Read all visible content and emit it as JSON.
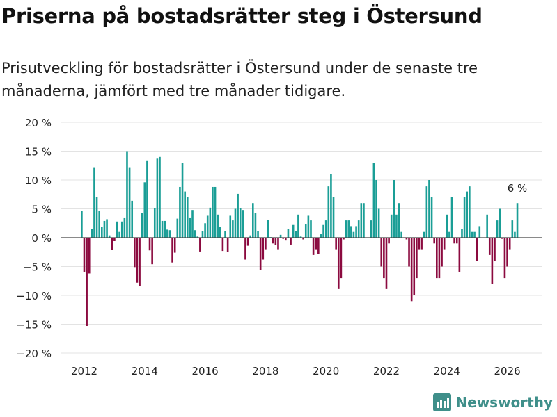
{
  "title": "Priserna på bostadsrätter steg i Östersund",
  "subtitle": "Prisutveckling för bostadsrätter i Östersund under de senaste tre månaderna, jämfört med tre månader tidigare.",
  "brand": "Newsworthy",
  "colors": {
    "positive": "#1a9e96",
    "negative": "#8b0a3f",
    "grid": "#e3e3e3",
    "zero": "#444444",
    "brand": "#3f8f8a"
  },
  "chart_data": {
    "type": "bar",
    "title": "Priserna på bostadsrätter steg i Östersund",
    "xlabel": "",
    "ylabel": "",
    "ylim": [
      -20,
      20
    ],
    "y_ticks": [
      -20,
      -15,
      -10,
      -5,
      0,
      5,
      10,
      15,
      20
    ],
    "y_tick_labels": [
      "−20 %",
      "−15 %",
      "−10 %",
      "−5 %",
      "0 %",
      "5 %",
      "10 %",
      "15 %",
      "20 %"
    ],
    "x_ticks": [
      2012,
      2014,
      2016,
      2018,
      2020,
      2022,
      2024,
      2026
    ],
    "x_tick_labels": [
      "2012",
      "2014",
      "2016",
      "2018",
      "2020",
      "2022",
      "2024",
      "2026"
    ],
    "start": 2011.9167,
    "step": 0.08333,
    "values": [
      4.6,
      -5.9,
      -15.3,
      -6.2,
      1.5,
      12.1,
      7.0,
      4.7,
      1.9,
      2.9,
      3.2,
      0.4,
      -2.1,
      -0.6,
      2.8,
      1.0,
      2.8,
      3.5,
      15.0,
      12.1,
      6.4,
      -5.1,
      -7.8,
      -8.4,
      4.3,
      9.6,
      13.4,
      -2.2,
      -4.6,
      5.1,
      13.7,
      14.0,
      2.9,
      2.9,
      1.4,
      1.3,
      -4.3,
      -2.6,
      3.3,
      8.8,
      12.9,
      8.0,
      7.1,
      3.5,
      4.8,
      1.3,
      0.2,
      -2.4,
      1.1,
      2.5,
      3.8,
      5.2,
      8.8,
      8.8,
      4.0,
      1.9,
      -2.3,
      1.1,
      -2.5,
      3.8,
      3.0,
      5.0,
      7.6,
      5.1,
      4.8,
      -3.8,
      -1.4,
      0.4,
      6.0,
      4.3,
      1.1,
      -5.6,
      -3.8,
      -2.0,
      3.1,
      0.1,
      -1.0,
      -1.3,
      -2.0,
      0.5,
      -0.2,
      -0.5,
      1.5,
      -1.2,
      2.2,
      1.1,
      4.0,
      0.2,
      -0.3,
      2.4,
      3.8,
      3.0,
      -3.0,
      -2.0,
      -2.8,
      0.6,
      2.2,
      3.0,
      8.9,
      11.0,
      7.0,
      -2.0,
      -8.9,
      -7.0,
      -0.3,
      3.0,
      3.0,
      2.0,
      1.0,
      2.0,
      3.0,
      6.0,
      6.0,
      -0.1,
      -0.1,
      3.0,
      12.9,
      10.0,
      5.0,
      -5.0,
      -7.0,
      -8.9,
      -1.0,
      4.0,
      10.0,
      4.0,
      6.0,
      1.0,
      -0.1,
      -0.3,
      -5.0,
      -11.0,
      -10.0,
      -7.0,
      -2.0,
      -2.0,
      1.0,
      8.9,
      10.0,
      7.0,
      -1.0,
      -7.0,
      -7.0,
      -5.0,
      -2.0,
      4.0,
      1.0,
      7.0,
      -1.0,
      -1.0,
      -5.9,
      1.5,
      7.0,
      8.0,
      8.9,
      1.0,
      1.0,
      -4.0,
      2.0,
      -0.1,
      -0.1,
      4.0,
      -3.0,
      -8.0,
      -4.0,
      3.0,
      5.0,
      -0.2,
      -7.0,
      -5.0,
      -2.0,
      3.0,
      1.0,
      6.0
    ],
    "annotation": "6 %"
  }
}
